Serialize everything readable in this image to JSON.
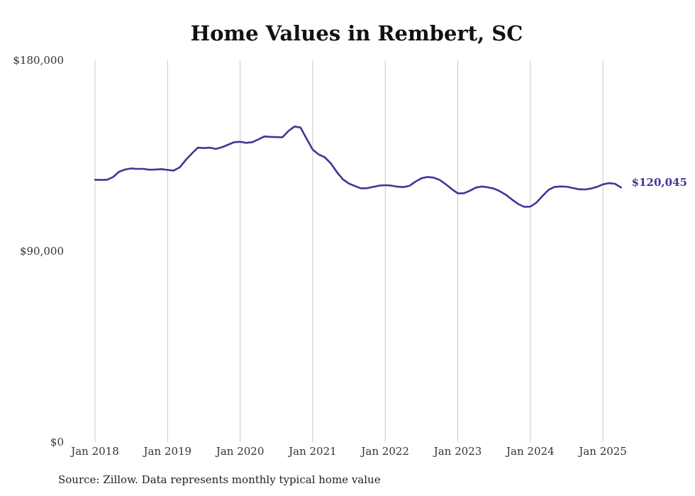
{
  "source_note": "Source: Zillow. Data represents monthly typical home value",
  "chart_data": {
    "type": "line",
    "title": "Home Values in Rembert, SC",
    "xlabel": "",
    "ylabel": "",
    "ylim": [
      0,
      180000
    ],
    "xlim": [
      "2018-01",
      "2025-04"
    ],
    "yticks": [
      {
        "value": 0,
        "label": "$0"
      },
      {
        "value": 90000,
        "label": "$90,000"
      },
      {
        "value": 180000,
        "label": "$180,000"
      }
    ],
    "xticks": [
      {
        "value": "2018-01",
        "label": "Jan 2018"
      },
      {
        "value": "2019-01",
        "label": "Jan 2019"
      },
      {
        "value": "2020-01",
        "label": "Jan 2020"
      },
      {
        "value": "2021-01",
        "label": "Jan 2021"
      },
      {
        "value": "2022-01",
        "label": "Jan 2022"
      },
      {
        "value": "2023-01",
        "label": "Jan 2023"
      },
      {
        "value": "2024-01",
        "label": "Jan 2024"
      },
      {
        "value": "2025-01",
        "label": "Jan 2025"
      }
    ],
    "grid": "vertical",
    "legend": "none",
    "line_color": "#3f3696",
    "end_label": "$120,045",
    "x": [
      "2018-01",
      "2018-02",
      "2018-03",
      "2018-04",
      "2018-05",
      "2018-06",
      "2018-07",
      "2018-08",
      "2018-09",
      "2018-10",
      "2018-11",
      "2018-12",
      "2019-01",
      "2019-02",
      "2019-03",
      "2019-04",
      "2019-05",
      "2019-06",
      "2019-07",
      "2019-08",
      "2019-09",
      "2019-10",
      "2019-11",
      "2019-12",
      "2020-01",
      "2020-02",
      "2020-03",
      "2020-04",
      "2020-05",
      "2020-06",
      "2020-07",
      "2020-08",
      "2020-09",
      "2020-10",
      "2020-11",
      "2020-12",
      "2021-01",
      "2021-02",
      "2021-03",
      "2021-04",
      "2021-05",
      "2021-06",
      "2021-07",
      "2021-08",
      "2021-09",
      "2021-10",
      "2021-11",
      "2021-12",
      "2022-01",
      "2022-02",
      "2022-03",
      "2022-04",
      "2022-05",
      "2022-06",
      "2022-07",
      "2022-08",
      "2022-09",
      "2022-10",
      "2022-11",
      "2022-12",
      "2023-01",
      "2023-02",
      "2023-03",
      "2023-04",
      "2023-05",
      "2023-06",
      "2023-07",
      "2023-08",
      "2023-09",
      "2023-10",
      "2023-11",
      "2023-12",
      "2024-01",
      "2024-02",
      "2024-03",
      "2024-04",
      "2024-05",
      "2024-06",
      "2024-07",
      "2024-08",
      "2024-09",
      "2024-10",
      "2024-11",
      "2024-12",
      "2025-01",
      "2025-02",
      "2025-03",
      "2025-04"
    ],
    "values": [
      123700,
      123600,
      123700,
      125000,
      127500,
      128500,
      129000,
      128800,
      128800,
      128400,
      128500,
      128700,
      128300,
      128000,
      129500,
      133000,
      136000,
      138800,
      138600,
      138800,
      138200,
      139000,
      140200,
      141400,
      141600,
      141100,
      141400,
      142700,
      144100,
      143900,
      143800,
      143700,
      146700,
      148800,
      148300,
      143000,
      137900,
      135600,
      134300,
      131400,
      127300,
      123900,
      121900,
      120700,
      119600,
      119700,
      120300,
      120900,
      121100,
      120900,
      120400,
      120200,
      120800,
      122800,
      124400,
      125000,
      124700,
      123600,
      121600,
      119300,
      117300,
      117300,
      118500,
      120000,
      120500,
      120100,
      119500,
      118200,
      116500,
      114300,
      112200,
      110900,
      111000,
      112900,
      116000,
      118900,
      120300,
      120500,
      120400,
      119800,
      119200,
      119100,
      119500,
      120300,
      121500,
      122100,
      121800,
      120045
    ]
  }
}
